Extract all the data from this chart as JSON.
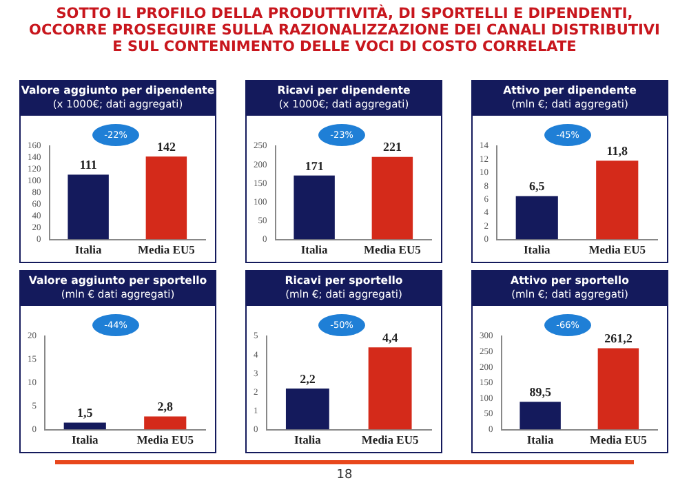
{
  "chart_data": [
    {
      "type": "other",
      "title": "SOTTO IL PROFILO DELLA PRODUTTIVITÀ, DI SPORTELLI E DIPENDENTI, OCCORRE PROSEGUIRE SULLA RAZIONALIZZAZIONE DEI CANALI DISTRIBUTIVI E SUL CONTENIMENTO DELLE VOCI DI COSTO CORRELATE",
      "annotations": [
        "18"
      ]
    },
    {
      "type": "bar",
      "title": "Valore aggiunto per dipendente",
      "subtitle": "(x 1000€; dati aggregati)",
      "categories": [
        "Italia",
        "Media EU5"
      ],
      "values": [
        111,
        142
      ],
      "colors": [
        "#141a5c",
        "#d42a1a"
      ],
      "value_labels": [
        "111",
        "142"
      ],
      "ylim": [
        0,
        160
      ],
      "yticks": [
        0,
        20,
        40,
        60,
        80,
        100,
        120,
        140,
        160
      ],
      "grid": false,
      "annotations": [
        "-22%"
      ]
    },
    {
      "type": "bar",
      "title": "Ricavi per dipendente",
      "subtitle": "(x 1000€; dati aggregati)",
      "categories": [
        "Italia",
        "Media EU5"
      ],
      "values": [
        171,
        221
      ],
      "colors": [
        "#141a5c",
        "#d42a1a"
      ],
      "value_labels": [
        "171",
        "221"
      ],
      "ylim": [
        0,
        250
      ],
      "yticks": [
        0,
        50,
        100,
        150,
        200,
        250
      ],
      "grid": false,
      "annotations": [
        "-23%"
      ]
    },
    {
      "type": "bar",
      "title": "Attivo per dipendente",
      "subtitle": "(mln €; dati aggregati)",
      "categories": [
        "Italia",
        "Media EU5"
      ],
      "values": [
        6.5,
        11.8
      ],
      "colors": [
        "#141a5c",
        "#d42a1a"
      ],
      "value_labels": [
        "6,5",
        "11,8"
      ],
      "ylim": [
        0,
        14
      ],
      "yticks": [
        0,
        2,
        4,
        6,
        8,
        10,
        12,
        14
      ],
      "grid": false,
      "annotations": [
        "-45%"
      ]
    },
    {
      "type": "bar",
      "title": "Valore aggiunto per sportello",
      "subtitle": "(mln € dati aggregati)",
      "categories": [
        "Italia",
        "Media EU5"
      ],
      "values": [
        1.5,
        2.8
      ],
      "colors": [
        "#141a5c",
        "#d42a1a"
      ],
      "value_labels": [
        "1,5",
        "2,8"
      ],
      "ylim": [
        0,
        20
      ],
      "yticks": [
        0,
        5,
        10,
        15,
        20
      ],
      "grid": false,
      "annotations": [
        "-44%"
      ]
    },
    {
      "type": "bar",
      "title": "Ricavi per sportello",
      "subtitle": "(mln €; dati aggregati)",
      "categories": [
        "Italia",
        "Media EU5"
      ],
      "values": [
        2.2,
        4.4
      ],
      "colors": [
        "#141a5c",
        "#d42a1a"
      ],
      "value_labels": [
        "2,2",
        "4,4"
      ],
      "ylim": [
        0,
        5
      ],
      "yticks": [
        0,
        1,
        2,
        3,
        4,
        5
      ],
      "grid": false,
      "annotations": [
        "-50%"
      ]
    },
    {
      "type": "bar",
      "title": "Attivo per sportello",
      "subtitle": "(mln €; dati aggregati)",
      "categories": [
        "Italia",
        "Media EU5"
      ],
      "values": [
        89.5,
        261.2
      ],
      "colors": [
        "#141a5c",
        "#d42a1a"
      ],
      "value_labels": [
        "89,5",
        "261,2"
      ],
      "ylim": [
        0,
        300
      ],
      "yticks": [
        0,
        50,
        100,
        150,
        200,
        250,
        300
      ],
      "grid": false,
      "annotations": [
        "-66%"
      ]
    }
  ]
}
